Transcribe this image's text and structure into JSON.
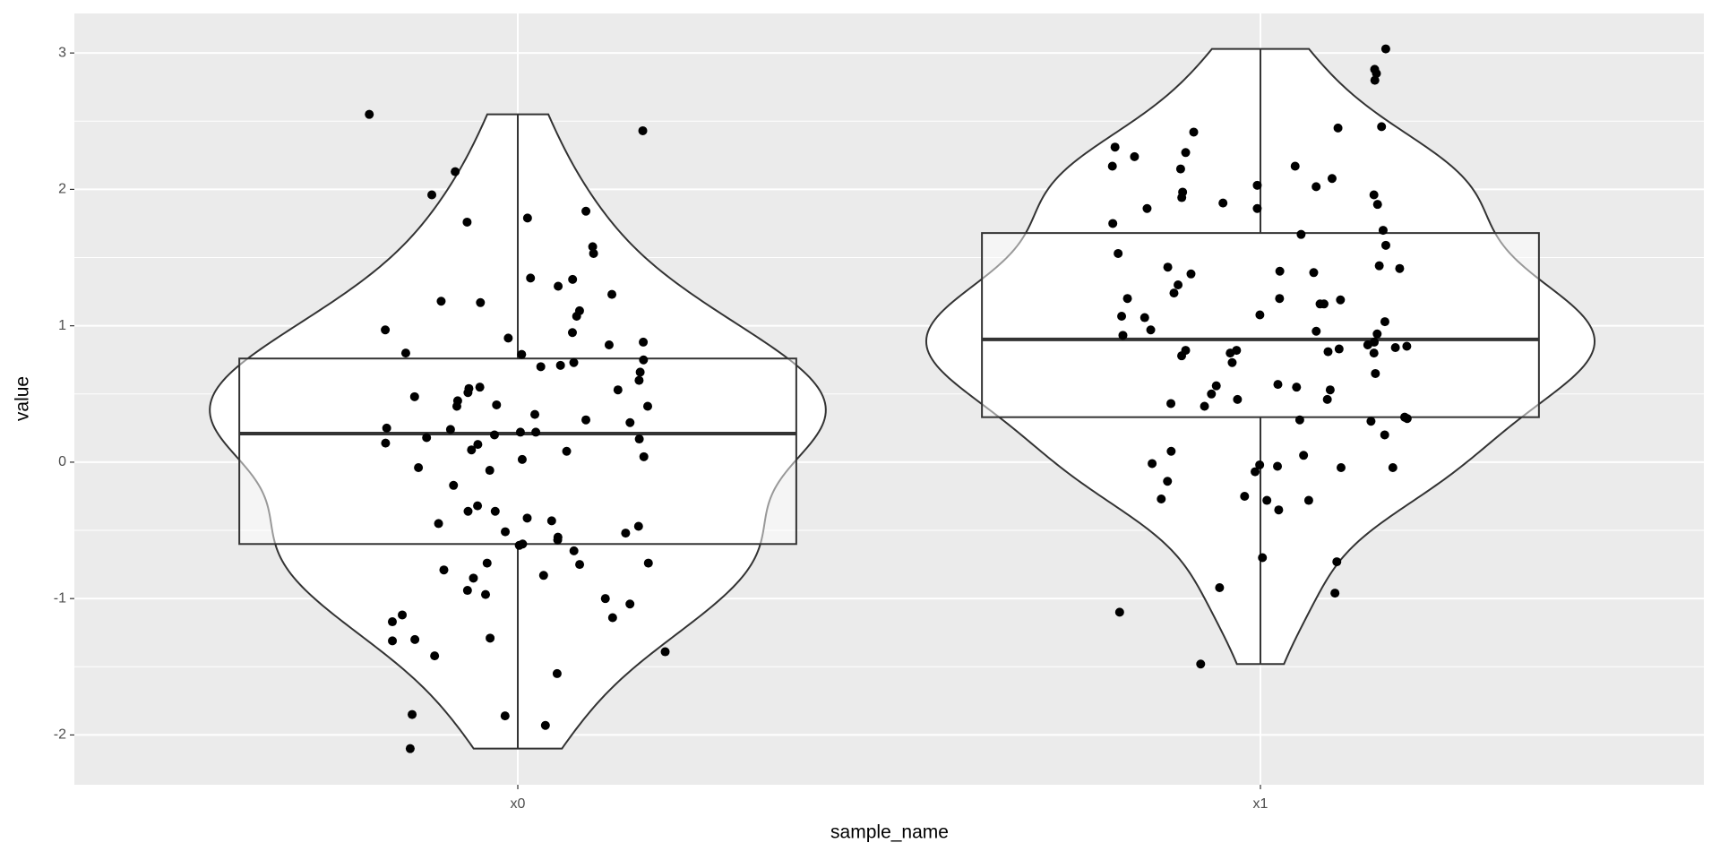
{
  "chart_data": {
    "type": "violin",
    "x_label": "sample_name",
    "y_label": "value",
    "categories": [
      "x0",
      "x1"
    ],
    "ylim": [
      -2.365,
      3.29
    ],
    "yticks": [
      -2,
      -1,
      0,
      1,
      2,
      3
    ],
    "grid": true,
    "boxes": [
      {
        "lower": -2.1,
        "q1": -0.6,
        "median": 0.21,
        "q3": 0.76,
        "upper": 2.55
      },
      {
        "lower": -1.48,
        "q1": 0.33,
        "median": 0.9,
        "q3": 1.68,
        "upper": 3.03
      }
    ],
    "values": [
      [
        2.55,
        2.43,
        2.13,
        1.96,
        1.84,
        1.79,
        1.76,
        1.58,
        1.53,
        1.35,
        1.34,
        1.29,
        1.23,
        1.18,
        1.17,
        1.11,
        1.07,
        0.97,
        0.95,
        0.91,
        0.88,
        0.86,
        0.8,
        0.79,
        0.75,
        0.73,
        0.71,
        0.7,
        0.66,
        0.6,
        0.55,
        0.54,
        0.53,
        0.51,
        0.48,
        0.45,
        0.42,
        0.41,
        0.41,
        0.35,
        0.31,
        0.29,
        0.25,
        0.24,
        0.22,
        0.22,
        0.2,
        0.18,
        0.17,
        0.14,
        0.13,
        0.09,
        0.08,
        0.04,
        0.02,
        -0.04,
        -0.06,
        -0.17,
        -0.32,
        -0.36,
        -0.36,
        -0.41,
        -0.43,
        -0.45,
        -0.47,
        -0.51,
        -0.52,
        -0.55,
        -0.57,
        -0.6,
        -0.61,
        -0.65,
        -0.74,
        -0.74,
        -0.75,
        -0.79,
        -0.83,
        -0.85,
        -0.94,
        -0.97,
        -1.0,
        -1.04,
        -1.12,
        -1.14,
        -1.17,
        -1.29,
        -1.3,
        -1.31,
        -1.39,
        -1.42,
        -1.55,
        -1.85,
        -1.86,
        -1.93,
        -2.1
      ],
      [
        3.03,
        2.88,
        2.85,
        2.8,
        2.46,
        2.45,
        2.42,
        2.31,
        2.27,
        2.24,
        2.17,
        2.17,
        2.15,
        2.08,
        2.03,
        2.02,
        1.98,
        1.96,
        1.94,
        1.9,
        1.89,
        1.86,
        1.86,
        1.75,
        1.7,
        1.67,
        1.59,
        1.53,
        1.44,
        1.43,
        1.42,
        1.4,
        1.39,
        1.38,
        1.3,
        1.24,
        1.2,
        1.2,
        1.19,
        1.16,
        1.16,
        1.08,
        1.07,
        1.06,
        1.03,
        0.97,
        0.96,
        0.94,
        0.93,
        0.88,
        0.86,
        0.85,
        0.84,
        0.83,
        0.82,
        0.82,
        0.81,
        0.8,
        0.8,
        0.78,
        0.73,
        0.65,
        0.57,
        0.56,
        0.55,
        0.53,
        0.5,
        0.46,
        0.46,
        0.43,
        0.41,
        0.33,
        0.32,
        0.31,
        0.3,
        0.2,
        0.08,
        0.05,
        -0.01,
        -0.02,
        -0.03,
        -0.04,
        -0.04,
        -0.07,
        -0.14,
        -0.25,
        -0.27,
        -0.28,
        -0.28,
        -0.35,
        -0.7,
        -0.73,
        -0.92,
        -0.96,
        -1.1,
        -1.48
      ]
    ]
  }
}
